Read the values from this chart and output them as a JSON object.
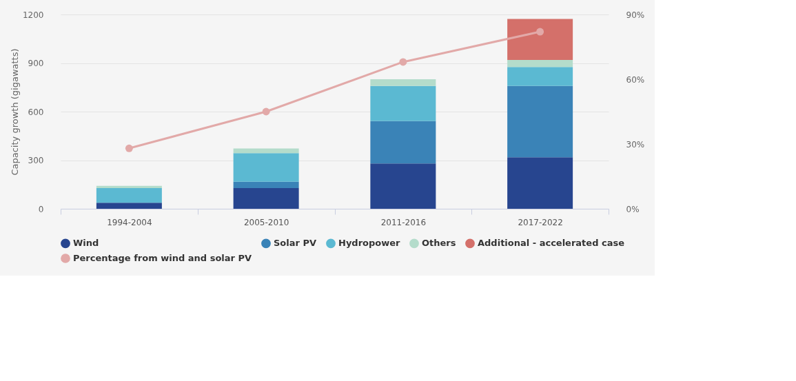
{
  "chart_data": {
    "type": "bar",
    "stacked": true,
    "ylabel": "Capacity growth (gigawatts)",
    "categories": [
      "1994-2004",
      "2005-2010",
      "2011-2016",
      "2017-2022"
    ],
    "series": [
      {
        "name": "Wind",
        "color": "#27458f",
        "values": [
          37,
          128,
          280,
          318
        ]
      },
      {
        "name": "Solar PV",
        "color": "#3a83b7",
        "values": [
          0,
          39,
          262,
          440
        ]
      },
      {
        "name": "Hydropower",
        "color": "#5bb9d2",
        "values": [
          91,
          177,
          216,
          118
        ]
      },
      {
        "name": "Others",
        "color": "#b4dccb",
        "values": [
          14,
          28,
          42,
          43
        ]
      },
      {
        "name": "Additional - accelerated case",
        "color": "#d4706a",
        "values": [
          null,
          null,
          null,
          253
        ]
      },
      {
        "name": "Percentage from wind and solar PV",
        "color": "#e2a9a8",
        "type": "line",
        "axis": "y2",
        "marker": "circle",
        "values": [
          28,
          45,
          68,
          82
        ]
      }
    ],
    "ylim": [
      0,
      1200
    ],
    "yticks": [
      0,
      300,
      600,
      900,
      1200
    ],
    "y2lim": [
      0,
      90
    ],
    "y2ticks": [
      {
        "value": 0,
        "label": "0%"
      },
      {
        "value": 30,
        "label": "30%"
      },
      {
        "value": 60,
        "label": "60%"
      },
      {
        "value": 90,
        "label": "90%"
      }
    ],
    "grid": "y",
    "legend": "bottom"
  }
}
